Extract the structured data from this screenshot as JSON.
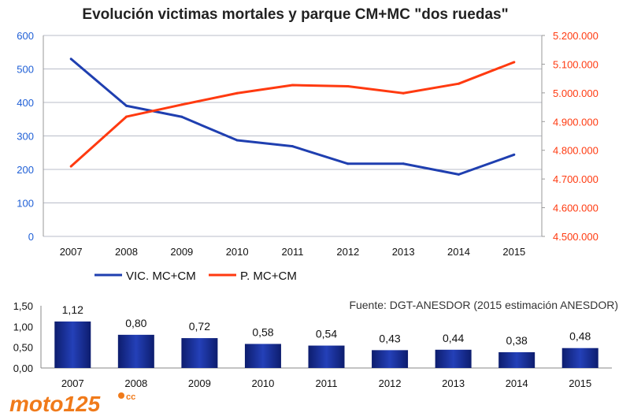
{
  "chart_data": [
    {
      "type": "line",
      "title": "Evolución victimas mortales y parque CM+MC \"dos ruedas\"",
      "categories": [
        "2007",
        "2008",
        "2009",
        "2010",
        "2011",
        "2012",
        "2013",
        "2014",
        "2015"
      ],
      "y_left": {
        "range": [
          0,
          600
        ],
        "ticks": [
          "0",
          "100",
          "200",
          "300",
          "400",
          "500",
          "600"
        ],
        "color": "#1f5fd6"
      },
      "y_right": {
        "range": [
          4500000,
          5200000
        ],
        "ticks": [
          "4.500.000",
          "4.600.000",
          "4.700.000",
          "4.800.000",
          "4.900.000",
          "5.000.000",
          "5.100.000",
          "5.200.000"
        ],
        "color": "#ff3a10"
      },
      "grid": true,
      "legend_position": "bottom",
      "series": [
        {
          "name": "VIC. MC+CM",
          "axis": "left",
          "color": "#1f3fb0",
          "values": [
            530,
            390,
            357,
            287,
            269,
            217,
            217,
            185,
            244
          ]
        },
        {
          "name": "P. MC+CM",
          "axis": "right",
          "color": "#ff3a10",
          "values": [
            4744000,
            4917000,
            4959000,
            4999000,
            5027000,
            5023000,
            4999000,
            5032000,
            5107000
          ]
        }
      ]
    },
    {
      "type": "bar",
      "categories": [
        "2007",
        "2008",
        "2009",
        "2010",
        "2011",
        "2012",
        "2013",
        "2014",
        "2015"
      ],
      "values": [
        1.12,
        0.8,
        0.72,
        0.58,
        0.54,
        0.43,
        0.44,
        0.38,
        0.48
      ],
      "data_labels": [
        "1,12",
        "0,80",
        "0,72",
        "0,58",
        "0,54",
        "0,43",
        "0,44",
        "0,38",
        "0,48"
      ],
      "y_ticks": [
        "0,00",
        "0,50",
        "1,00",
        "1,50"
      ],
      "ylim": [
        0,
        1.5
      ],
      "color": "#1a2f9a",
      "annotation": "Fuente: DGT-ANESDOR (2015 estimación ANESDOR)"
    }
  ],
  "logo": {
    "text": "moto125cc",
    "color": "#f07a1a"
  }
}
